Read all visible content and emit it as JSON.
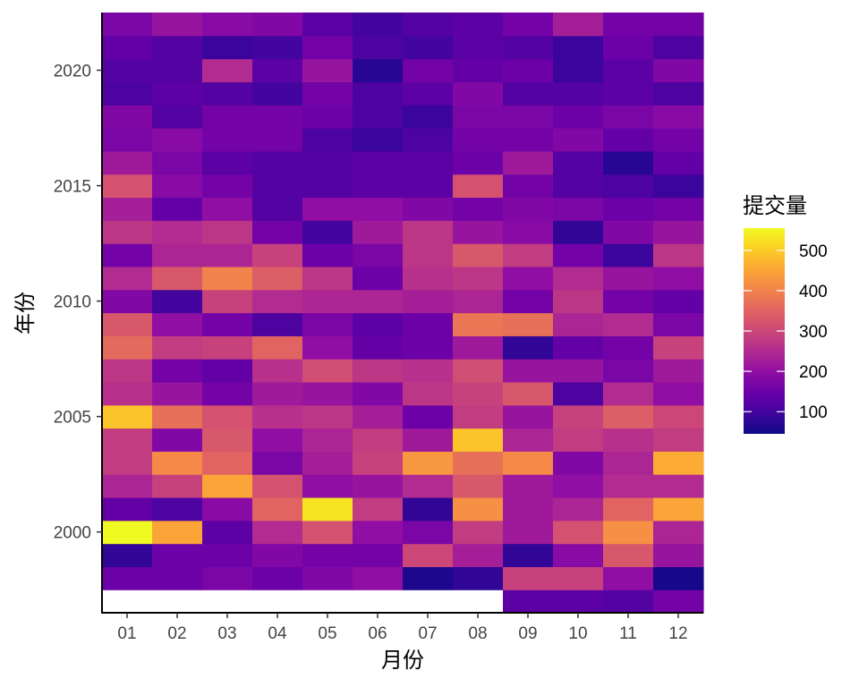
{
  "chart_data": {
    "type": "heatmap",
    "xlabel": "月份",
    "ylabel": "年份",
    "x": [
      "01",
      "02",
      "03",
      "04",
      "05",
      "06",
      "07",
      "08",
      "09",
      "10",
      "11",
      "12"
    ],
    "y": [
      1997,
      1998,
      1999,
      2000,
      2001,
      2002,
      2003,
      2004,
      2005,
      2006,
      2007,
      2008,
      2009,
      2010,
      2011,
      2012,
      2013,
      2014,
      2015,
      2016,
      2017,
      2018,
      2019,
      2020,
      2021,
      2022
    ],
    "yticks": [
      2000,
      2005,
      2010,
      2015,
      2020
    ],
    "legend": {
      "title": "提交量",
      "placement": "right",
      "ticks": [
        100,
        200,
        300,
        400,
        500
      ],
      "range": [
        45,
        555
      ]
    },
    "values": [
      [
        null,
        null,
        null,
        null,
        null,
        null,
        null,
        null,
        130,
        130,
        120,
        160
      ],
      [
        150,
        150,
        170,
        150,
        180,
        200,
        60,
        80,
        290,
        290,
        200,
        55
      ],
      [
        80,
        150,
        150,
        180,
        160,
        160,
        300,
        230,
        80,
        190,
        330,
        210
      ],
      [
        555,
        450,
        130,
        250,
        320,
        200,
        170,
        280,
        220,
        320,
        420,
        240
      ],
      [
        140,
        110,
        190,
        350,
        530,
        280,
        80,
        420,
        220,
        240,
        350,
        450
      ],
      [
        240,
        290,
        450,
        320,
        200,
        210,
        250,
        330,
        220,
        200,
        250,
        250
      ],
      [
        280,
        410,
        350,
        170,
        230,
        290,
        430,
        370,
        410,
        180,
        240,
        460
      ],
      [
        280,
        180,
        330,
        200,
        240,
        280,
        220,
        490,
        240,
        280,
        260,
        280
      ],
      [
        490,
        370,
        320,
        260,
        270,
        230,
        150,
        280,
        210,
        290,
        340,
        300
      ],
      [
        260,
        210,
        160,
        220,
        210,
        180,
        270,
        290,
        330,
        110,
        250,
        200
      ],
      [
        270,
        160,
        140,
        260,
        310,
        270,
        260,
        310,
        210,
        210,
        170,
        220
      ],
      [
        360,
        280,
        290,
        350,
        200,
        140,
        150,
        220,
        80,
        140,
        160,
        290
      ],
      [
        330,
        200,
        160,
        110,
        170,
        130,
        150,
        380,
        370,
        240,
        250,
        170
      ],
      [
        180,
        100,
        290,
        250,
        240,
        240,
        230,
        240,
        160,
        270,
        160,
        140
      ],
      [
        250,
        330,
        400,
        340,
        270,
        150,
        260,
        270,
        200,
        250,
        210,
        200
      ],
      [
        160,
        240,
        240,
        290,
        150,
        170,
        270,
        330,
        280,
        160,
        90,
        270
      ],
      [
        270,
        250,
        270,
        160,
        100,
        220,
        270,
        210,
        190,
        80,
        180,
        210
      ],
      [
        230,
        140,
        200,
        120,
        200,
        200,
        180,
        160,
        180,
        170,
        150,
        160
      ],
      [
        320,
        190,
        160,
        120,
        120,
        130,
        130,
        320,
        160,
        120,
        110,
        90
      ],
      [
        220,
        170,
        130,
        120,
        120,
        130,
        130,
        150,
        220,
        120,
        70,
        140
      ],
      [
        170,
        190,
        160,
        160,
        110,
        90,
        110,
        160,
        160,
        180,
        140,
        160
      ],
      [
        180,
        120,
        160,
        160,
        150,
        110,
        90,
        170,
        170,
        150,
        170,
        190
      ],
      [
        110,
        130,
        120,
        100,
        160,
        110,
        130,
        180,
        120,
        120,
        130,
        110
      ],
      [
        120,
        120,
        250,
        130,
        210,
        70,
        160,
        140,
        150,
        90,
        130,
        180
      ],
      [
        140,
        120,
        90,
        100,
        160,
        110,
        100,
        130,
        120,
        90,
        150,
        110
      ],
      [
        170,
        210,
        190,
        180,
        130,
        100,
        120,
        130,
        160,
        230,
        160,
        160
      ]
    ]
  }
}
